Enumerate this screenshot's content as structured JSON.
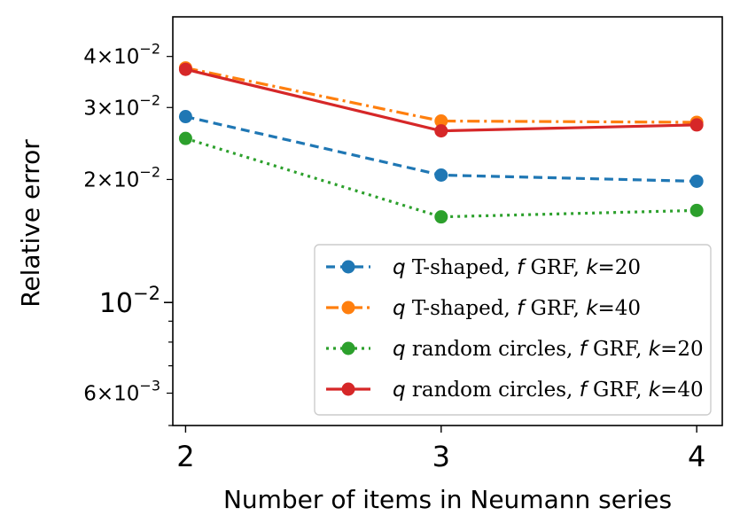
{
  "chart_data": {
    "type": "line",
    "title": "",
    "xlabel": "Number of items in Neumann series",
    "ylabel": "Relative error",
    "yscale": "log",
    "xlim": [
      1.95,
      4.1
    ],
    "ylim": [
      0.005,
      0.05
    ],
    "x": [
      2,
      3,
      4
    ],
    "x_tick_labels": [
      "2",
      "3",
      "4"
    ],
    "y_ticks": [
      {
        "value": 0.04,
        "mant": "4",
        "exp": "−2"
      },
      {
        "value": 0.03,
        "mant": "3",
        "exp": "−2"
      },
      {
        "value": 0.02,
        "mant": "2",
        "exp": "−2"
      },
      {
        "value": 0.01,
        "mant": "",
        "exp": "−2"
      },
      {
        "value": 0.006,
        "mant": "6",
        "exp": "−3"
      }
    ],
    "legend_position": "lower-right",
    "series": [
      {
        "name": "q T-shaped, f GRF, k=20",
        "q": "q",
        "rest1": " T-shaped, ",
        "f": "f",
        "rest2": " GRF, ",
        "k": "k",
        "rest3": "=20",
        "color": "#1f77b4",
        "linestyle": "dashed",
        "values": [
          0.0285,
          0.0205,
          0.0198
        ]
      },
      {
        "name": "q T-shaped, f GRF, k=40",
        "q": "q",
        "rest1": " T-shaped, ",
        "f": "f",
        "rest2": " GRF, ",
        "k": "k",
        "rest3": "=40",
        "color": "#ff7f0e",
        "linestyle": "dashdot",
        "values": [
          0.0375,
          0.0278,
          0.0276
        ]
      },
      {
        "name": "q random circles, f GRF, k=20",
        "q": "q",
        "rest1": " random circles, ",
        "f": "f",
        "rest2": " GRF, ",
        "k": "k",
        "rest3": "=20",
        "color": "#2ca02c",
        "linestyle": "dotted",
        "values": [
          0.0252,
          0.0162,
          0.0168
        ]
      },
      {
        "name": "q random circles, f GRF, k=40",
        "q": "q",
        "rest1": " random circles, ",
        "f": "f",
        "rest2": " GRF, ",
        "k": "k",
        "rest3": "=40",
        "color": "#d62728",
        "linestyle": "solid",
        "values": [
          0.0372,
          0.0263,
          0.0272
        ]
      }
    ]
  }
}
